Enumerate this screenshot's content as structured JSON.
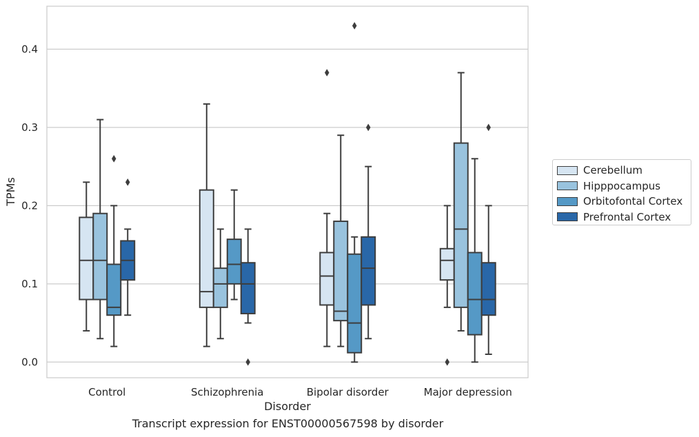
{
  "chart_data": {
    "type": "box",
    "title": "",
    "caption": "Transcript expression for ENST00000567598 by disorder",
    "xlabel": "Disorder",
    "ylabel": "TPMs",
    "ylim": [
      -0.02,
      0.455
    ],
    "yticks": [
      0.0,
      0.1,
      0.2,
      0.3,
      0.4
    ],
    "ytick_labels": [
      "0.0",
      "0.1",
      "0.2",
      "0.3",
      "0.4"
    ],
    "grid": true,
    "legend_position": "right",
    "categories": [
      "Control",
      "Schizophrenia",
      "Bipolar disorder",
      "Major depression"
    ],
    "series": [
      {
        "name": "Cerebellum",
        "color": "#d6e5f2",
        "boxes": [
          {
            "whislo": 0.04,
            "q1": 0.08,
            "med": 0.13,
            "q3": 0.185,
            "whishi": 0.23,
            "fliers": []
          },
          {
            "whislo": 0.02,
            "q1": 0.07,
            "med": 0.09,
            "q3": 0.22,
            "whishi": 0.33,
            "fliers": []
          },
          {
            "whislo": 0.02,
            "q1": 0.073,
            "med": 0.11,
            "q3": 0.14,
            "whishi": 0.19,
            "fliers": [
              0.37
            ]
          },
          {
            "whislo": 0.07,
            "q1": 0.105,
            "med": 0.13,
            "q3": 0.145,
            "whishi": 0.2,
            "fliers": [
              0.0
            ]
          }
        ]
      },
      {
        "name": "Hipppocampus",
        "color": "#99c3de",
        "boxes": [
          {
            "whislo": 0.03,
            "q1": 0.08,
            "med": 0.13,
            "q3": 0.19,
            "whishi": 0.31,
            "fliers": []
          },
          {
            "whislo": 0.03,
            "q1": 0.07,
            "med": 0.1,
            "q3": 0.12,
            "whishi": 0.17,
            "fliers": []
          },
          {
            "whislo": 0.02,
            "q1": 0.053,
            "med": 0.065,
            "q3": 0.18,
            "whishi": 0.29,
            "fliers": []
          },
          {
            "whislo": 0.04,
            "q1": 0.07,
            "med": 0.17,
            "q3": 0.28,
            "whishi": 0.37,
            "fliers": []
          }
        ]
      },
      {
        "name": "Orbitofontal Cortex",
        "color": "#5599c6",
        "boxes": [
          {
            "whislo": 0.02,
            "q1": 0.06,
            "med": 0.07,
            "q3": 0.125,
            "whishi": 0.2,
            "fliers": [
              0.26
            ]
          },
          {
            "whislo": 0.08,
            "q1": 0.1,
            "med": 0.125,
            "q3": 0.157,
            "whishi": 0.22,
            "fliers": []
          },
          {
            "whislo": 0.0,
            "q1": 0.012,
            "med": 0.05,
            "q3": 0.138,
            "whishi": 0.16,
            "fliers": [
              0.43
            ]
          },
          {
            "whislo": 0.0,
            "q1": 0.035,
            "med": 0.08,
            "q3": 0.14,
            "whishi": 0.26,
            "fliers": []
          }
        ]
      },
      {
        "name": "Prefrontal Cortex",
        "color": "#2967a8",
        "boxes": [
          {
            "whislo": 0.06,
            "q1": 0.105,
            "med": 0.13,
            "q3": 0.155,
            "whishi": 0.17,
            "fliers": [
              0.23
            ]
          },
          {
            "whislo": 0.05,
            "q1": 0.062,
            "med": 0.1,
            "q3": 0.127,
            "whishi": 0.17,
            "fliers": [
              0.0
            ]
          },
          {
            "whislo": 0.03,
            "q1": 0.073,
            "med": 0.12,
            "q3": 0.16,
            "whishi": 0.25,
            "fliers": [
              0.3
            ]
          },
          {
            "whislo": 0.01,
            "q1": 0.06,
            "med": 0.08,
            "q3": 0.127,
            "whishi": 0.2,
            "fliers": [
              0.3
            ]
          }
        ]
      }
    ]
  }
}
